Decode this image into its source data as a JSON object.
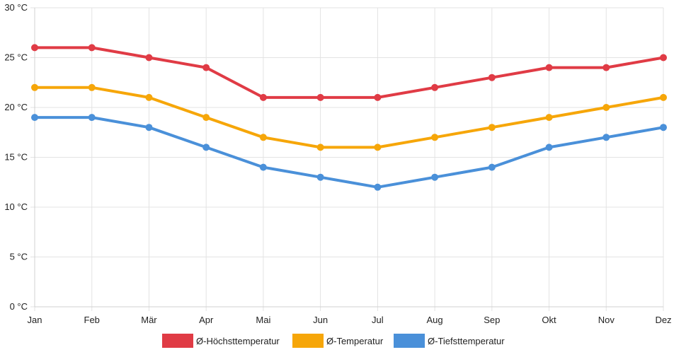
{
  "chart_data": {
    "type": "line",
    "categories": [
      "Jan",
      "Feb",
      "Mär",
      "Apr",
      "Mai",
      "Jun",
      "Jul",
      "Aug",
      "Sep",
      "Okt",
      "Nov",
      "Dez"
    ],
    "y_unit": "°C",
    "ylim": [
      0,
      30
    ],
    "ytick_values": [
      0,
      5,
      10,
      15,
      20,
      25,
      30
    ],
    "ytick_labels": [
      "0 °C",
      "5 °C",
      "10 °C",
      "15 °C",
      "20 °C",
      "25 °C",
      "30 °C"
    ],
    "grid": true,
    "legend_position": "bottom",
    "series": [
      {
        "name": "Ø-Höchsttemperatur",
        "color": "#e03b45",
        "values": [
          26,
          26,
          25,
          24,
          21,
          21,
          21,
          22,
          23,
          24,
          24,
          25
        ]
      },
      {
        "name": "Ø-Temperatur",
        "color": "#f6a609",
        "values": [
          22,
          22,
          21,
          19,
          17,
          16,
          16,
          17,
          18,
          19,
          20,
          21
        ]
      },
      {
        "name": "Ø-Tiefsttemperatur",
        "color": "#4a90d9",
        "values": [
          19,
          19,
          18,
          16,
          14,
          13,
          12,
          13,
          14,
          16,
          17,
          18
        ]
      }
    ]
  }
}
